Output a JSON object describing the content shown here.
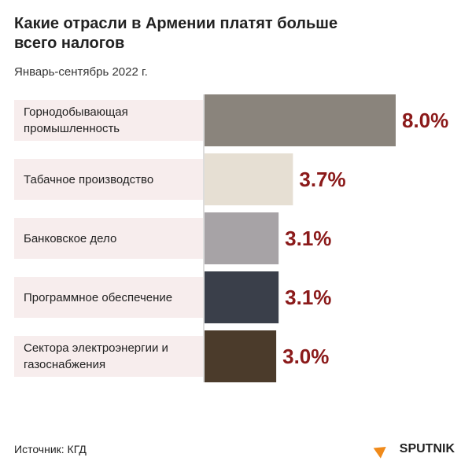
{
  "chart_data": {
    "type": "bar",
    "orientation": "horizontal",
    "title": "Какие отрасли в Армении платят больше всего налогов",
    "subtitle": "Январь-сентябрь 2022 г.",
    "categories": [
      "Горнодобывающая промышленность",
      "Табачное производство",
      "Банковское дело",
      "Программное обеспечение",
      "Сектора электроэнергии и газоснабжения"
    ],
    "values": [
      8.0,
      3.7,
      3.1,
      3.1,
      3.0
    ],
    "value_labels": [
      "8.0%",
      "3.7%",
      "3.1%",
      "3.1%",
      "3.0%"
    ],
    "colors": [
      "#8a847c",
      "#e6dfd3",
      "#a7a3a6",
      "#3a3f4a",
      "#4b3b2b"
    ],
    "label_color": "#8b1a1a"
  },
  "source": "Источник: КГД",
  "logo": "SPUTNIK"
}
